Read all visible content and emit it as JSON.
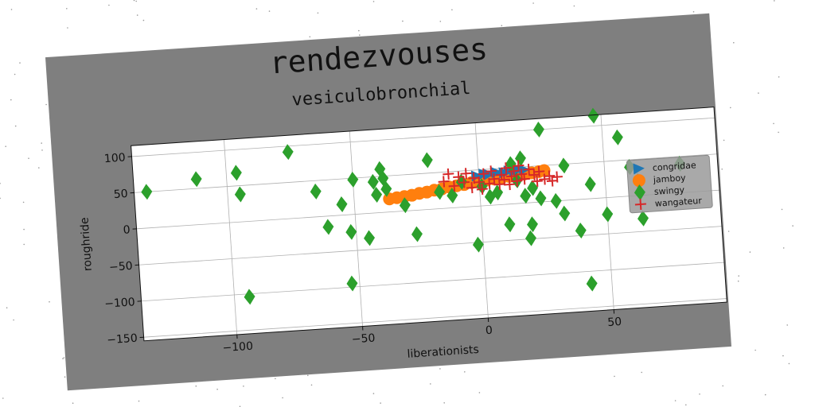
{
  "chart_data": {
    "type": "scatter",
    "title": "rendezvouses",
    "subtitle": "vesiculobronchial",
    "xlabel": "liberationists",
    "ylabel": "roughride",
    "xlim": [
      -137,
      95
    ],
    "ylim": [
      -155,
      115
    ],
    "xticks": [
      -100,
      -50,
      0,
      50
    ],
    "yticks": [
      100,
      50,
      0,
      -50,
      -100,
      -150
    ],
    "grid": true,
    "legend_position": "right",
    "series": [
      {
        "name": "congridae",
        "marker": "triangle-right",
        "color": "#1f77b4",
        "points": [
          [
            -1,
            42
          ],
          [
            2,
            44
          ],
          [
            4,
            43
          ],
          [
            7,
            45
          ],
          [
            10,
            44
          ],
          [
            12,
            46
          ],
          [
            14,
            45
          ],
          [
            16,
            47
          ],
          [
            18,
            46
          ]
        ]
      },
      {
        "name": "jamboy",
        "marker": "circle",
        "color": "#ff7f0e",
        "points": [
          [
            -36,
            18
          ],
          [
            -33,
            19
          ],
          [
            -30,
            20
          ],
          [
            -27,
            21
          ],
          [
            -24,
            23
          ],
          [
            -21,
            24
          ],
          [
            -18,
            26
          ],
          [
            -15,
            27
          ],
          [
            -12,
            29
          ],
          [
            -9,
            30
          ],
          [
            -6,
            31
          ],
          [
            -3,
            33
          ],
          [
            0,
            34
          ],
          [
            3,
            35
          ],
          [
            6,
            36
          ],
          [
            9,
            37
          ],
          [
            12,
            38
          ],
          [
            15,
            39
          ],
          [
            18,
            40
          ],
          [
            21,
            41
          ],
          [
            24,
            42
          ],
          [
            26,
            43
          ]
        ]
      },
      {
        "name": "swingy",
        "marker": "diamond",
        "color": "#2ca02c",
        "points": [
          [
            -132,
            50
          ],
          [
            -112,
            63
          ],
          [
            -96,
            68
          ],
          [
            -95,
            38
          ],
          [
            -94,
            -104
          ],
          [
            -75,
            92
          ],
          [
            -65,
            35
          ],
          [
            -61,
            -15
          ],
          [
            -55,
            15
          ],
          [
            -53,
            -95
          ],
          [
            -52,
            -24
          ],
          [
            -50,
            48
          ],
          [
            -45,
            -34
          ],
          [
            -42,
            43
          ],
          [
            -41,
            25
          ],
          [
            -39,
            60
          ],
          [
            -38,
            47
          ],
          [
            -37,
            32
          ],
          [
            -30,
            8
          ],
          [
            -26,
            -33
          ],
          [
            -20,
            68
          ],
          [
            -16,
            23
          ],
          [
            -11,
            17
          ],
          [
            -7,
            35
          ],
          [
            -2,
            -53
          ],
          [
            1,
            27
          ],
          [
            4,
            12
          ],
          [
            7,
            17
          ],
          [
            11,
            -28
          ],
          [
            13,
            55
          ],
          [
            15,
            32
          ],
          [
            17,
            62
          ],
          [
            18,
            10
          ],
          [
            19,
            -49
          ],
          [
            20,
            -30
          ],
          [
            21,
            20
          ],
          [
            24,
            5
          ],
          [
            25,
            100
          ],
          [
            30,
            0
          ],
          [
            33,
            -18
          ],
          [
            34,
            48
          ],
          [
            39,
            -43
          ],
          [
            42,
            -117
          ],
          [
            44,
            20
          ],
          [
            47,
            114
          ],
          [
            50,
            -23
          ],
          [
            56,
            82
          ],
          [
            60,
            40
          ],
          [
            63,
            20
          ],
          [
            64,
            -32
          ],
          [
            80,
            40
          ]
        ]
      },
      {
        "name": "wangateur",
        "marker": "plus",
        "color": "#d62728",
        "points": [
          [
            -14,
            37
          ],
          [
            -12,
            47
          ],
          [
            -10,
            30
          ],
          [
            -8,
            42
          ],
          [
            -6,
            34
          ],
          [
            -5,
            46
          ],
          [
            -3,
            26
          ],
          [
            -2,
            39
          ],
          [
            0,
            33
          ],
          [
            1,
            23
          ],
          [
            2,
            44
          ],
          [
            4,
            30
          ],
          [
            5,
            47
          ],
          [
            6,
            36
          ],
          [
            8,
            28
          ],
          [
            9,
            41
          ],
          [
            10,
            34
          ],
          [
            11,
            50
          ],
          [
            12,
            27
          ],
          [
            13,
            38
          ],
          [
            14,
            45
          ],
          [
            15,
            31
          ],
          [
            16,
            52
          ],
          [
            17,
            40
          ],
          [
            18,
            33
          ],
          [
            20,
            46
          ],
          [
            22,
            38
          ],
          [
            23,
            29
          ],
          [
            24,
            42
          ],
          [
            26,
            31
          ],
          [
            28,
            35
          ],
          [
            29,
            28
          ],
          [
            31,
            33
          ]
        ]
      }
    ]
  }
}
